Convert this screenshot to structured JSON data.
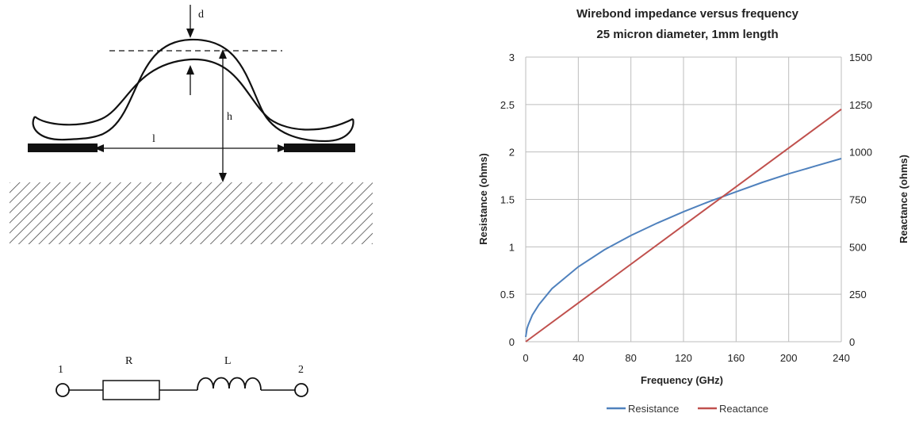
{
  "wirebond_diagram": {
    "label_d": "d",
    "label_h": "h",
    "label_l": "l"
  },
  "circuit": {
    "port_1": "1",
    "port_2": "2",
    "label_r": "R",
    "label_l": "L"
  },
  "chart_data": {
    "type": "line",
    "title": "Wirebond impedance versus frequency",
    "subtitle": "25 micron diameter, 1mm length",
    "xlabel": "Frequency (GHz)",
    "ylabel": "Resistance (ohms)",
    "y2label": "Reactance (ohms)",
    "xlim": [
      0,
      240
    ],
    "ylim": [
      0,
      3
    ],
    "y2lim": [
      0,
      1500
    ],
    "x_ticks": [
      "0",
      "40",
      "80",
      "120",
      "160",
      "200",
      "240"
    ],
    "y_ticks": [
      "0",
      "0.5",
      "1",
      "1.5",
      "2",
      "2.5",
      "3"
    ],
    "y2_ticks": [
      "0",
      "250",
      "500",
      "750",
      "1000",
      "1250",
      "1500"
    ],
    "grid": true,
    "legend_position": "bottom",
    "series": [
      {
        "name": "Resistance",
        "axis": "left",
        "color": "#4f81bd",
        "x": [
          0,
          1,
          2,
          5,
          10,
          20,
          40,
          60,
          80,
          100,
          120,
          140,
          160,
          180,
          200,
          220,
          240
        ],
        "y": [
          0.05,
          0.14,
          0.18,
          0.28,
          0.39,
          0.56,
          0.79,
          0.97,
          1.12,
          1.25,
          1.37,
          1.48,
          1.58,
          1.68,
          1.77,
          1.85,
          1.93
        ]
      },
      {
        "name": "Reactance",
        "axis": "right",
        "color": "#c0504d",
        "x": [
          0,
          240
        ],
        "y": [
          0,
          1225
        ]
      }
    ]
  }
}
